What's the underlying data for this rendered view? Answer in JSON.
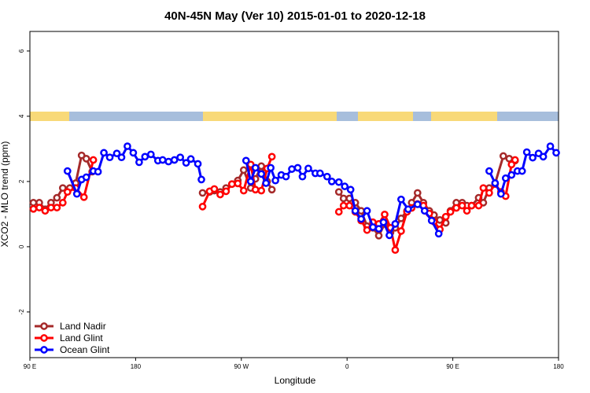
{
  "chart_data": {
    "type": "line",
    "title": "40N-45N May (Ver 10)   2015-01-01 to 2020-12-18",
    "x_label": "Longitude",
    "y_label": "XCO2 - MLO trend (ppm)",
    "xlim": [
      90,
      540
    ],
    "ylim": [
      -3.4,
      6.6
    ],
    "xticks": [
      {
        "value": 90,
        "label": "90 E"
      },
      180,
      {
        "value": 270,
        "label": "90 W"
      },
      {
        "value": 360,
        "label": "0"
      },
      {
        "value": 450,
        "label": "90 E"
      },
      {
        "value": 540,
        "label": "180"
      }
    ],
    "yticks": [
      -2,
      0,
      2,
      4,
      6
    ],
    "legend": "bottom-left",
    "series": [
      {
        "name": "Land Nadir",
        "color": "#a52a2a",
        "x": [
          93,
          98,
          103,
          108,
          113,
          118,
          124,
          129,
          134,
          138,
          143,
          190,
          237,
          243,
          247,
          252,
          257,
          262,
          267,
          272,
          278,
          282,
          287,
          292,
          296,
          320,
          353,
          357,
          362,
          367,
          372,
          377,
          382,
          387,
          392,
          397,
          401,
          406,
          411,
          415,
          420,
          425,
          430,
          434,
          439,
          444,
          448,
          453,
          458,
          462,
          466,
          472,
          476,
          481,
          486,
          493,
          498,
          503
        ],
        "values": [
          1.35,
          1.35,
          1.15,
          1.35,
          1.5,
          1.8,
          1.8,
          1.95,
          2.8,
          2.7,
          2.3,
          null,
          1.65,
          1.68,
          1.72,
          1.68,
          1.8,
          1.92,
          2.03,
          2.35,
          1.8,
          2.08,
          2.47,
          2.0,
          1.75,
          null,
          1.68,
          1.48,
          1.48,
          1.35,
          1.1,
          0.63,
          0.58,
          0.34,
          0.7,
          0.44,
          0.58,
          0.87,
          1.1,
          1.35,
          1.65,
          1.35,
          1.1,
          0.97,
          0.82,
          0.73,
          1.1,
          1.35,
          1.35,
          1.26,
          1.26,
          1.5,
          1.35,
          1.8,
          1.94,
          2.78,
          2.7,
          2.64
        ]
      },
      {
        "name": "Land Glint",
        "color": "#ff0000",
        "x": [
          93,
          98,
          103,
          108,
          113,
          118,
          122,
          129,
          136,
          144,
          190,
          237,
          243,
          247,
          252,
          257,
          262,
          267,
          272,
          278,
          282,
          287,
          292,
          296,
          320,
          353,
          357,
          362,
          367,
          372,
          377,
          382,
          387,
          392,
          397,
          401,
          406,
          411,
          415,
          420,
          425,
          430,
          434,
          439,
          444,
          448,
          453,
          458,
          462,
          466,
          472,
          476,
          481,
          486,
          491,
          495,
          500,
          503
        ],
        "values": [
          1.16,
          1.2,
          1.1,
          1.2,
          1.2,
          1.35,
          1.68,
          1.8,
          1.52,
          2.66,
          null,
          1.23,
          1.7,
          1.77,
          1.6,
          1.7,
          1.92,
          1.94,
          1.72,
          2.52,
          1.75,
          1.72,
          2.4,
          2.76,
          null,
          1.07,
          1.26,
          1.26,
          1.07,
          0.8,
          0.51,
          0.75,
          0.7,
          0.99,
          0.58,
          -0.1,
          0.48,
          1.07,
          1.19,
          1.31,
          1.26,
          1.02,
          0.77,
          0.53,
          0.92,
          1.07,
          1.19,
          1.26,
          1.1,
          1.26,
          1.26,
          1.8,
          1.65,
          1.92,
          1.68,
          1.55,
          2.52,
          2.66
        ]
      },
      {
        "name": "Ocean Glint",
        "color": "#0000ff",
        "x": [
          122,
          130,
          134,
          138,
          144,
          148,
          153,
          158,
          164,
          168,
          173,
          178,
          183,
          188,
          193,
          199,
          203,
          208,
          213,
          218,
          223,
          227,
          233,
          236,
          255,
          274,
          278,
          282,
          287,
          291,
          295,
          299,
          304,
          308,
          313,
          318,
          322,
          327,
          333,
          337,
          343,
          347,
          353,
          358,
          363,
          367,
          372,
          377,
          382,
          387,
          391,
          396,
          401,
          406,
          412,
          420,
          426,
          432,
          438,
          460,
          481,
          486,
          491,
          495,
          500,
          505,
          509,
          513,
          518,
          523,
          527,
          533,
          538
        ],
        "values": [
          2.32,
          1.62,
          2.06,
          2.13,
          2.32,
          2.3,
          2.88,
          2.74,
          2.86,
          2.74,
          3.08,
          2.88,
          2.59,
          2.76,
          2.83,
          2.64,
          2.66,
          2.61,
          2.66,
          2.74,
          2.57,
          2.69,
          2.54,
          2.06,
          null,
          2.64,
          2.0,
          2.42,
          2.23,
          1.95,
          2.42,
          2.03,
          2.2,
          2.15,
          2.38,
          2.42,
          2.15,
          2.4,
          2.25,
          2.25,
          2.15,
          2.0,
          1.98,
          1.85,
          1.75,
          1.1,
          0.85,
          1.1,
          0.6,
          0.55,
          0.75,
          0.35,
          0.7,
          1.45,
          1.15,
          1.3,
          1.1,
          0.8,
          0.4,
          null,
          2.32,
          1.95,
          1.62,
          2.1,
          2.2,
          2.32,
          2.32,
          2.9,
          2.73,
          2.86,
          2.76,
          3.08,
          2.88
        ]
      }
    ]
  }
}
